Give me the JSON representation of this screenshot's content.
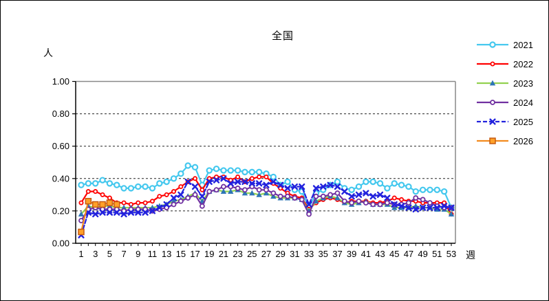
{
  "frame": {
    "background": "#FFFFFF",
    "border_color": "#000000"
  },
  "chart_data": {
    "type": "line",
    "title": "全国",
    "y_unit_label": "人",
    "x_unit_label": "週",
    "ylim": [
      0.0,
      1.0
    ],
    "xlim": [
      1,
      53
    ],
    "grid": "horizontal-dashed",
    "legend_position": "right",
    "y_ticks": [
      {
        "value": 0.0,
        "label": "0.00"
      },
      {
        "value": 0.2,
        "label": "0.20"
      },
      {
        "value": 0.4,
        "label": "0.40"
      },
      {
        "value": 0.6,
        "label": "0.60"
      },
      {
        "value": 0.8,
        "label": "0.80"
      },
      {
        "value": 1.0,
        "label": "1.00"
      }
    ],
    "x_tick_labels": [
      "1",
      "3",
      "5",
      "7",
      "9",
      "11",
      "13",
      "15",
      "17",
      "19",
      "21",
      "23",
      "25",
      "27",
      "29",
      "31",
      "33",
      "35",
      "37",
      "39",
      "41",
      "43",
      "45",
      "47",
      "49",
      "51",
      "53"
    ],
    "axis_color": "#000000",
    "outer_border_color": "#888888",
    "series": [
      {
        "name": "2021",
        "color": "#44C8EE",
        "marker": "circle",
        "line_style": "solid",
        "values": [
          0.36,
          0.37,
          0.37,
          0.39,
          0.37,
          0.36,
          0.34,
          0.34,
          0.35,
          0.35,
          0.34,
          0.37,
          0.38,
          0.4,
          0.43,
          0.48,
          0.47,
          0.36,
          0.45,
          0.46,
          0.45,
          0.45,
          0.45,
          0.44,
          0.44,
          0.44,
          0.43,
          0.41,
          0.36,
          0.38,
          0.33,
          0.32,
          0.22,
          0.31,
          0.33,
          0.36,
          0.38,
          0.34,
          0.33,
          0.35,
          0.38,
          0.38,
          0.37,
          0.34,
          0.37,
          0.36,
          0.35,
          0.32,
          0.33,
          0.33,
          0.33,
          0.32,
          0.22
        ]
      },
      {
        "name": "2022",
        "color": "#FF0000",
        "marker": "circle-small",
        "line_style": "solid",
        "values": [
          0.25,
          0.32,
          0.32,
          0.3,
          0.28,
          0.25,
          0.25,
          0.24,
          0.25,
          0.25,
          0.26,
          0.29,
          0.3,
          0.32,
          0.35,
          0.38,
          0.4,
          0.33,
          0.4,
          0.41,
          0.41,
          0.39,
          0.41,
          0.38,
          0.4,
          0.41,
          0.41,
          0.37,
          0.34,
          0.31,
          0.29,
          0.28,
          0.21,
          0.25,
          0.27,
          0.28,
          0.27,
          0.25,
          0.26,
          0.26,
          0.26,
          0.25,
          0.25,
          0.26,
          0.28,
          0.27,
          0.26,
          0.26,
          0.25,
          0.25,
          0.25,
          0.25,
          0.18
        ]
      },
      {
        "name": "2023",
        "color": "#92D14F",
        "marker": "triangle",
        "marker_color": "#2E75B6",
        "line_style": "solid",
        "values": [
          0.18,
          0.23,
          0.22,
          0.23,
          0.23,
          0.22,
          0.22,
          0.22,
          0.22,
          0.22,
          0.22,
          0.23,
          0.24,
          0.26,
          0.27,
          0.29,
          0.31,
          0.26,
          0.32,
          0.33,
          0.32,
          0.32,
          0.33,
          0.31,
          0.31,
          0.3,
          0.31,
          0.29,
          0.28,
          0.28,
          0.28,
          0.27,
          0.2,
          0.26,
          0.28,
          0.29,
          0.28,
          0.25,
          0.24,
          0.25,
          0.26,
          0.24,
          0.24,
          0.24,
          0.22,
          0.22,
          0.22,
          0.23,
          0.22,
          0.22,
          0.21,
          0.21,
          0.18
        ]
      },
      {
        "name": "2024",
        "color": "#7030A0",
        "marker": "circle-open",
        "line_style": "solid",
        "values": [
          0.14,
          0.21,
          0.22,
          0.21,
          0.21,
          0.21,
          0.2,
          0.21,
          0.21,
          0.21,
          0.2,
          0.21,
          0.22,
          0.24,
          0.26,
          0.28,
          0.3,
          0.23,
          0.32,
          0.33,
          0.35,
          0.35,
          0.34,
          0.33,
          0.35,
          0.33,
          0.33,
          0.31,
          0.29,
          0.29,
          0.28,
          0.27,
          0.18,
          0.29,
          0.29,
          0.3,
          0.31,
          0.26,
          0.25,
          0.26,
          0.25,
          0.24,
          0.24,
          0.25,
          0.24,
          0.24,
          0.25,
          0.28,
          0.27,
          0.25,
          0.23,
          0.22,
          0.22
        ]
      },
      {
        "name": "2025",
        "color": "#2222DD",
        "marker": "x",
        "line_style": "dashed",
        "values": [
          0.05,
          0.19,
          0.18,
          0.19,
          0.19,
          0.19,
          0.18,
          0.19,
          0.19,
          0.19,
          0.2,
          0.22,
          0.24,
          0.28,
          0.3,
          0.38,
          0.35,
          0.29,
          0.38,
          0.39,
          0.4,
          0.37,
          0.38,
          0.38,
          0.37,
          0.37,
          0.36,
          0.38,
          0.36,
          0.34,
          0.35,
          0.35,
          0.24,
          0.34,
          0.35,
          0.36,
          0.35,
          0.32,
          0.29,
          0.3,
          0.31,
          0.29,
          0.3,
          0.28,
          0.24,
          0.23,
          0.22,
          0.21,
          0.22,
          0.22,
          0.22,
          0.23,
          0.22
        ]
      },
      {
        "name": "2026",
        "color": "#F28A1E",
        "marker": "square",
        "marker_fill": "#FFA129",
        "marker_stroke": "#C55A11",
        "line_style": "solid",
        "values": [
          0.07,
          0.26,
          0.24,
          0.24,
          0.25,
          0.24
        ]
      }
    ]
  }
}
